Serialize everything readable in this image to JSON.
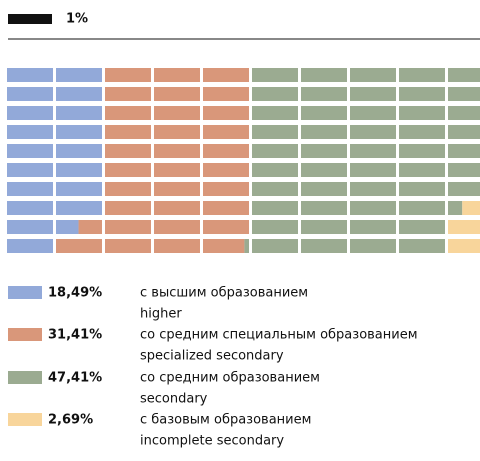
{
  "chart_data": {
    "type": "waffle",
    "unit_label": "1%",
    "series": [
      {
        "name": "с высшим образованием",
        "name_en": "higher",
        "color": "#92a9d9",
        "values": [
          18.49
        ],
        "value_labels": [
          "18,49%"
        ]
      },
      {
        "name": "со средним специальным образованием",
        "name_en": "specialized secondary",
        "color": "#d9977a",
        "values": [
          31.41
        ],
        "value_labels": [
          "31,41%"
        ]
      },
      {
        "name": "со средним образованием",
        "name_en": "secondary",
        "color": "#9bab91",
        "values": [
          47.41
        ],
        "value_labels": [
          "47,41%"
        ]
      },
      {
        "name": "с базовым образованием",
        "name_en": "incomplete secondary",
        "color": "#f8d59b",
        "values": [
          2.69
        ],
        "value_labels": [
          "2,69%"
        ]
      }
    ]
  }
}
